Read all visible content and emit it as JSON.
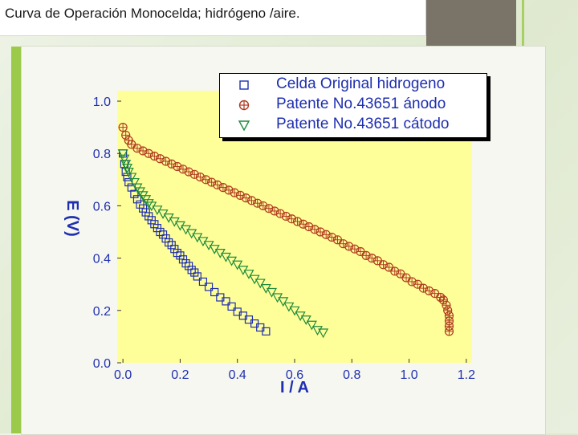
{
  "slide": {
    "title": "Curva de Operación Monocelda; hidrógeno /aire."
  },
  "chart_data": {
    "type": "scatter",
    "title": "",
    "xlabel": "I / A",
    "ylabel": "E (V)",
    "xlim": [
      -0.02,
      1.22
    ],
    "ylim": [
      0.0,
      1.04
    ],
    "x_ticks": [
      "0.0",
      "0.2",
      "0.4",
      "0.6",
      "0.8",
      "1.0",
      "1.2"
    ],
    "y_ticks": [
      "0.0",
      "0.2",
      "0.4",
      "0.6",
      "0.8",
      "1.0"
    ],
    "grid": false,
    "legend_position": "top-right",
    "plot_background": "#ffff99",
    "series": [
      {
        "name": "Celda Original hidrogeno",
        "marker": "square",
        "color": "#1f2fb0",
        "points": [
          [
            0.0,
            0.8
          ],
          [
            0.005,
            0.76
          ],
          [
            0.01,
            0.73
          ],
          [
            0.015,
            0.71
          ],
          [
            0.02,
            0.69
          ],
          [
            0.03,
            0.67
          ],
          [
            0.04,
            0.645
          ],
          [
            0.05,
            0.625
          ],
          [
            0.06,
            0.605
          ],
          [
            0.07,
            0.59
          ],
          [
            0.08,
            0.575
          ],
          [
            0.09,
            0.56
          ],
          [
            0.1,
            0.545
          ],
          [
            0.11,
            0.53
          ],
          [
            0.12,
            0.515
          ],
          [
            0.13,
            0.5
          ],
          [
            0.14,
            0.49
          ],
          [
            0.15,
            0.475
          ],
          [
            0.16,
            0.46
          ],
          [
            0.17,
            0.45
          ],
          [
            0.18,
            0.435
          ],
          [
            0.19,
            0.42
          ],
          [
            0.2,
            0.41
          ],
          [
            0.21,
            0.395
          ],
          [
            0.22,
            0.38
          ],
          [
            0.23,
            0.37
          ],
          [
            0.24,
            0.355
          ],
          [
            0.25,
            0.345
          ],
          [
            0.26,
            0.33
          ],
          [
            0.28,
            0.31
          ],
          [
            0.3,
            0.29
          ],
          [
            0.32,
            0.27
          ],
          [
            0.34,
            0.25
          ],
          [
            0.36,
            0.235
          ],
          [
            0.38,
            0.215
          ],
          [
            0.4,
            0.195
          ],
          [
            0.42,
            0.18
          ],
          [
            0.44,
            0.165
          ],
          [
            0.46,
            0.15
          ],
          [
            0.48,
            0.135
          ],
          [
            0.5,
            0.12
          ]
        ]
      },
      {
        "name": "Patente No.43651 ánodo",
        "marker": "circle-plus",
        "color": "#b03a1f",
        "points": [
          [
            0.0,
            0.9
          ],
          [
            0.01,
            0.87
          ],
          [
            0.02,
            0.85
          ],
          [
            0.03,
            0.835
          ],
          [
            0.05,
            0.82
          ],
          [
            0.07,
            0.81
          ],
          [
            0.09,
            0.8
          ],
          [
            0.11,
            0.79
          ],
          [
            0.13,
            0.78
          ],
          [
            0.15,
            0.77
          ],
          [
            0.17,
            0.76
          ],
          [
            0.19,
            0.75
          ],
          [
            0.21,
            0.74
          ],
          [
            0.23,
            0.73
          ],
          [
            0.25,
            0.72
          ],
          [
            0.27,
            0.71
          ],
          [
            0.29,
            0.7
          ],
          [
            0.31,
            0.69
          ],
          [
            0.33,
            0.68
          ],
          [
            0.35,
            0.67
          ],
          [
            0.37,
            0.66
          ],
          [
            0.39,
            0.65
          ],
          [
            0.41,
            0.64
          ],
          [
            0.43,
            0.63
          ],
          [
            0.45,
            0.62
          ],
          [
            0.47,
            0.61
          ],
          [
            0.49,
            0.6
          ],
          [
            0.51,
            0.59
          ],
          [
            0.53,
            0.58
          ],
          [
            0.55,
            0.57
          ],
          [
            0.57,
            0.56
          ],
          [
            0.59,
            0.55
          ],
          [
            0.61,
            0.54
          ],
          [
            0.63,
            0.53
          ],
          [
            0.65,
            0.52
          ],
          [
            0.67,
            0.51
          ],
          [
            0.69,
            0.5
          ],
          [
            0.71,
            0.49
          ],
          [
            0.73,
            0.48
          ],
          [
            0.75,
            0.47
          ],
          [
            0.77,
            0.455
          ],
          [
            0.79,
            0.445
          ],
          [
            0.81,
            0.435
          ],
          [
            0.83,
            0.425
          ],
          [
            0.85,
            0.41
          ],
          [
            0.87,
            0.4
          ],
          [
            0.89,
            0.39
          ],
          [
            0.91,
            0.375
          ],
          [
            0.93,
            0.365
          ],
          [
            0.95,
            0.35
          ],
          [
            0.97,
            0.34
          ],
          [
            0.99,
            0.325
          ],
          [
            1.01,
            0.31
          ],
          [
            1.03,
            0.3
          ],
          [
            1.05,
            0.285
          ],
          [
            1.07,
            0.275
          ],
          [
            1.09,
            0.265
          ],
          [
            1.11,
            0.25
          ],
          [
            1.12,
            0.24
          ],
          [
            1.13,
            0.22
          ],
          [
            1.135,
            0.2
          ],
          [
            1.14,
            0.18
          ],
          [
            1.14,
            0.16
          ],
          [
            1.14,
            0.14
          ],
          [
            1.14,
            0.12
          ]
        ]
      },
      {
        "name": "Patente No.43651 cátodo",
        "marker": "triangle-down",
        "color": "#1f8a3a",
        "points": [
          [
            0.0,
            0.8
          ],
          [
            0.005,
            0.78
          ],
          [
            0.01,
            0.76
          ],
          [
            0.015,
            0.745
          ],
          [
            0.02,
            0.73
          ],
          [
            0.03,
            0.71
          ],
          [
            0.04,
            0.69
          ],
          [
            0.05,
            0.67
          ],
          [
            0.06,
            0.655
          ],
          [
            0.07,
            0.64
          ],
          [
            0.08,
            0.625
          ],
          [
            0.09,
            0.61
          ],
          [
            0.1,
            0.6
          ],
          [
            0.12,
            0.585
          ],
          [
            0.14,
            0.57
          ],
          [
            0.16,
            0.555
          ],
          [
            0.18,
            0.54
          ],
          [
            0.2,
            0.525
          ],
          [
            0.22,
            0.51
          ],
          [
            0.24,
            0.495
          ],
          [
            0.26,
            0.48
          ],
          [
            0.28,
            0.465
          ],
          [
            0.3,
            0.45
          ],
          [
            0.32,
            0.435
          ],
          [
            0.34,
            0.42
          ],
          [
            0.36,
            0.405
          ],
          [
            0.38,
            0.39
          ],
          [
            0.4,
            0.375
          ],
          [
            0.42,
            0.355
          ],
          [
            0.44,
            0.34
          ],
          [
            0.46,
            0.32
          ],
          [
            0.48,
            0.305
          ],
          [
            0.5,
            0.285
          ],
          [
            0.52,
            0.27
          ],
          [
            0.54,
            0.25
          ],
          [
            0.56,
            0.235
          ],
          [
            0.58,
            0.215
          ],
          [
            0.6,
            0.2
          ],
          [
            0.62,
            0.18
          ],
          [
            0.64,
            0.165
          ],
          [
            0.66,
            0.145
          ],
          [
            0.68,
            0.125
          ],
          [
            0.7,
            0.115
          ]
        ]
      }
    ]
  }
}
